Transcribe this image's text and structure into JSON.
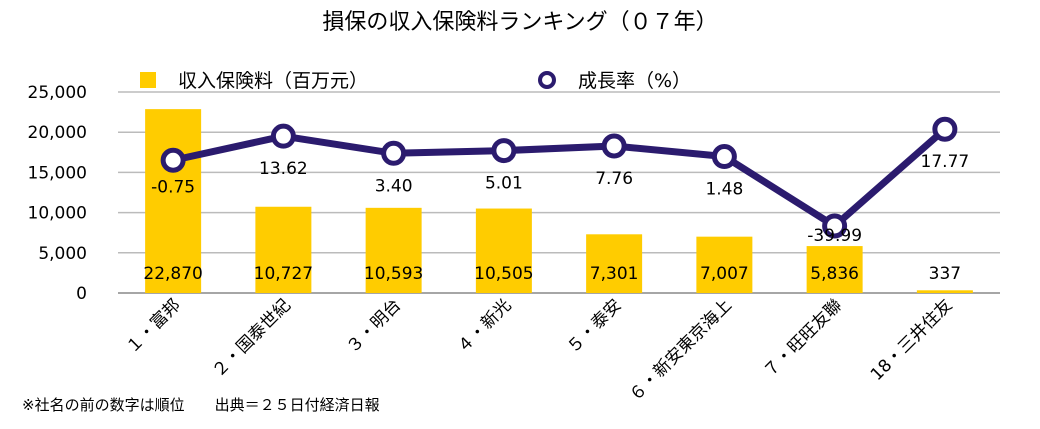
{
  "chart_data": {
    "type": "bar",
    "title": "損保の収入保険料ランキング（０７年）",
    "categories": [
      "１・富邦",
      "２・国泰世紀",
      "３・明台",
      "４・新光",
      "５・泰安",
      "６・新安東京海上",
      "７・旺旺友聯",
      "18・三井住友"
    ],
    "series": [
      {
        "name": "収入保険料（百万元）",
        "type": "bar",
        "values": [
          22870,
          10727,
          10593,
          10505,
          7301,
          7007,
          5836,
          337
        ],
        "labels": [
          "22,870",
          "10,727",
          "10,593",
          "10,505",
          "7,301",
          "7,007",
          "5,836",
          "337"
        ],
        "color": "#FFCC00"
      },
      {
        "name": "成長率（%）",
        "type": "line",
        "values": [
          -0.75,
          13.62,
          3.4,
          5.01,
          7.76,
          1.48,
          -39.99,
          17.77
        ],
        "labels": [
          "-0.75",
          "13.62",
          "3.40",
          "5.01",
          "7.76",
          "1.48",
          "-39.99",
          "17.77"
        ],
        "color": "#2B1B6E"
      }
    ],
    "y_axis": {
      "ylim": [
        0,
        25000
      ],
      "ticks": [
        0,
        5000,
        10000,
        15000,
        20000,
        25000
      ],
      "tick_labels": [
        "0",
        "5,000",
        "10,000",
        "15,000",
        "20,000",
        "25,000"
      ]
    },
    "y2_axis": {
      "ylim": [
        -80,
        40
      ]
    },
    "grid": true,
    "legend": "top"
  },
  "footnote": "※社名の前の数字は順位　　出典＝２５日付経済日報"
}
